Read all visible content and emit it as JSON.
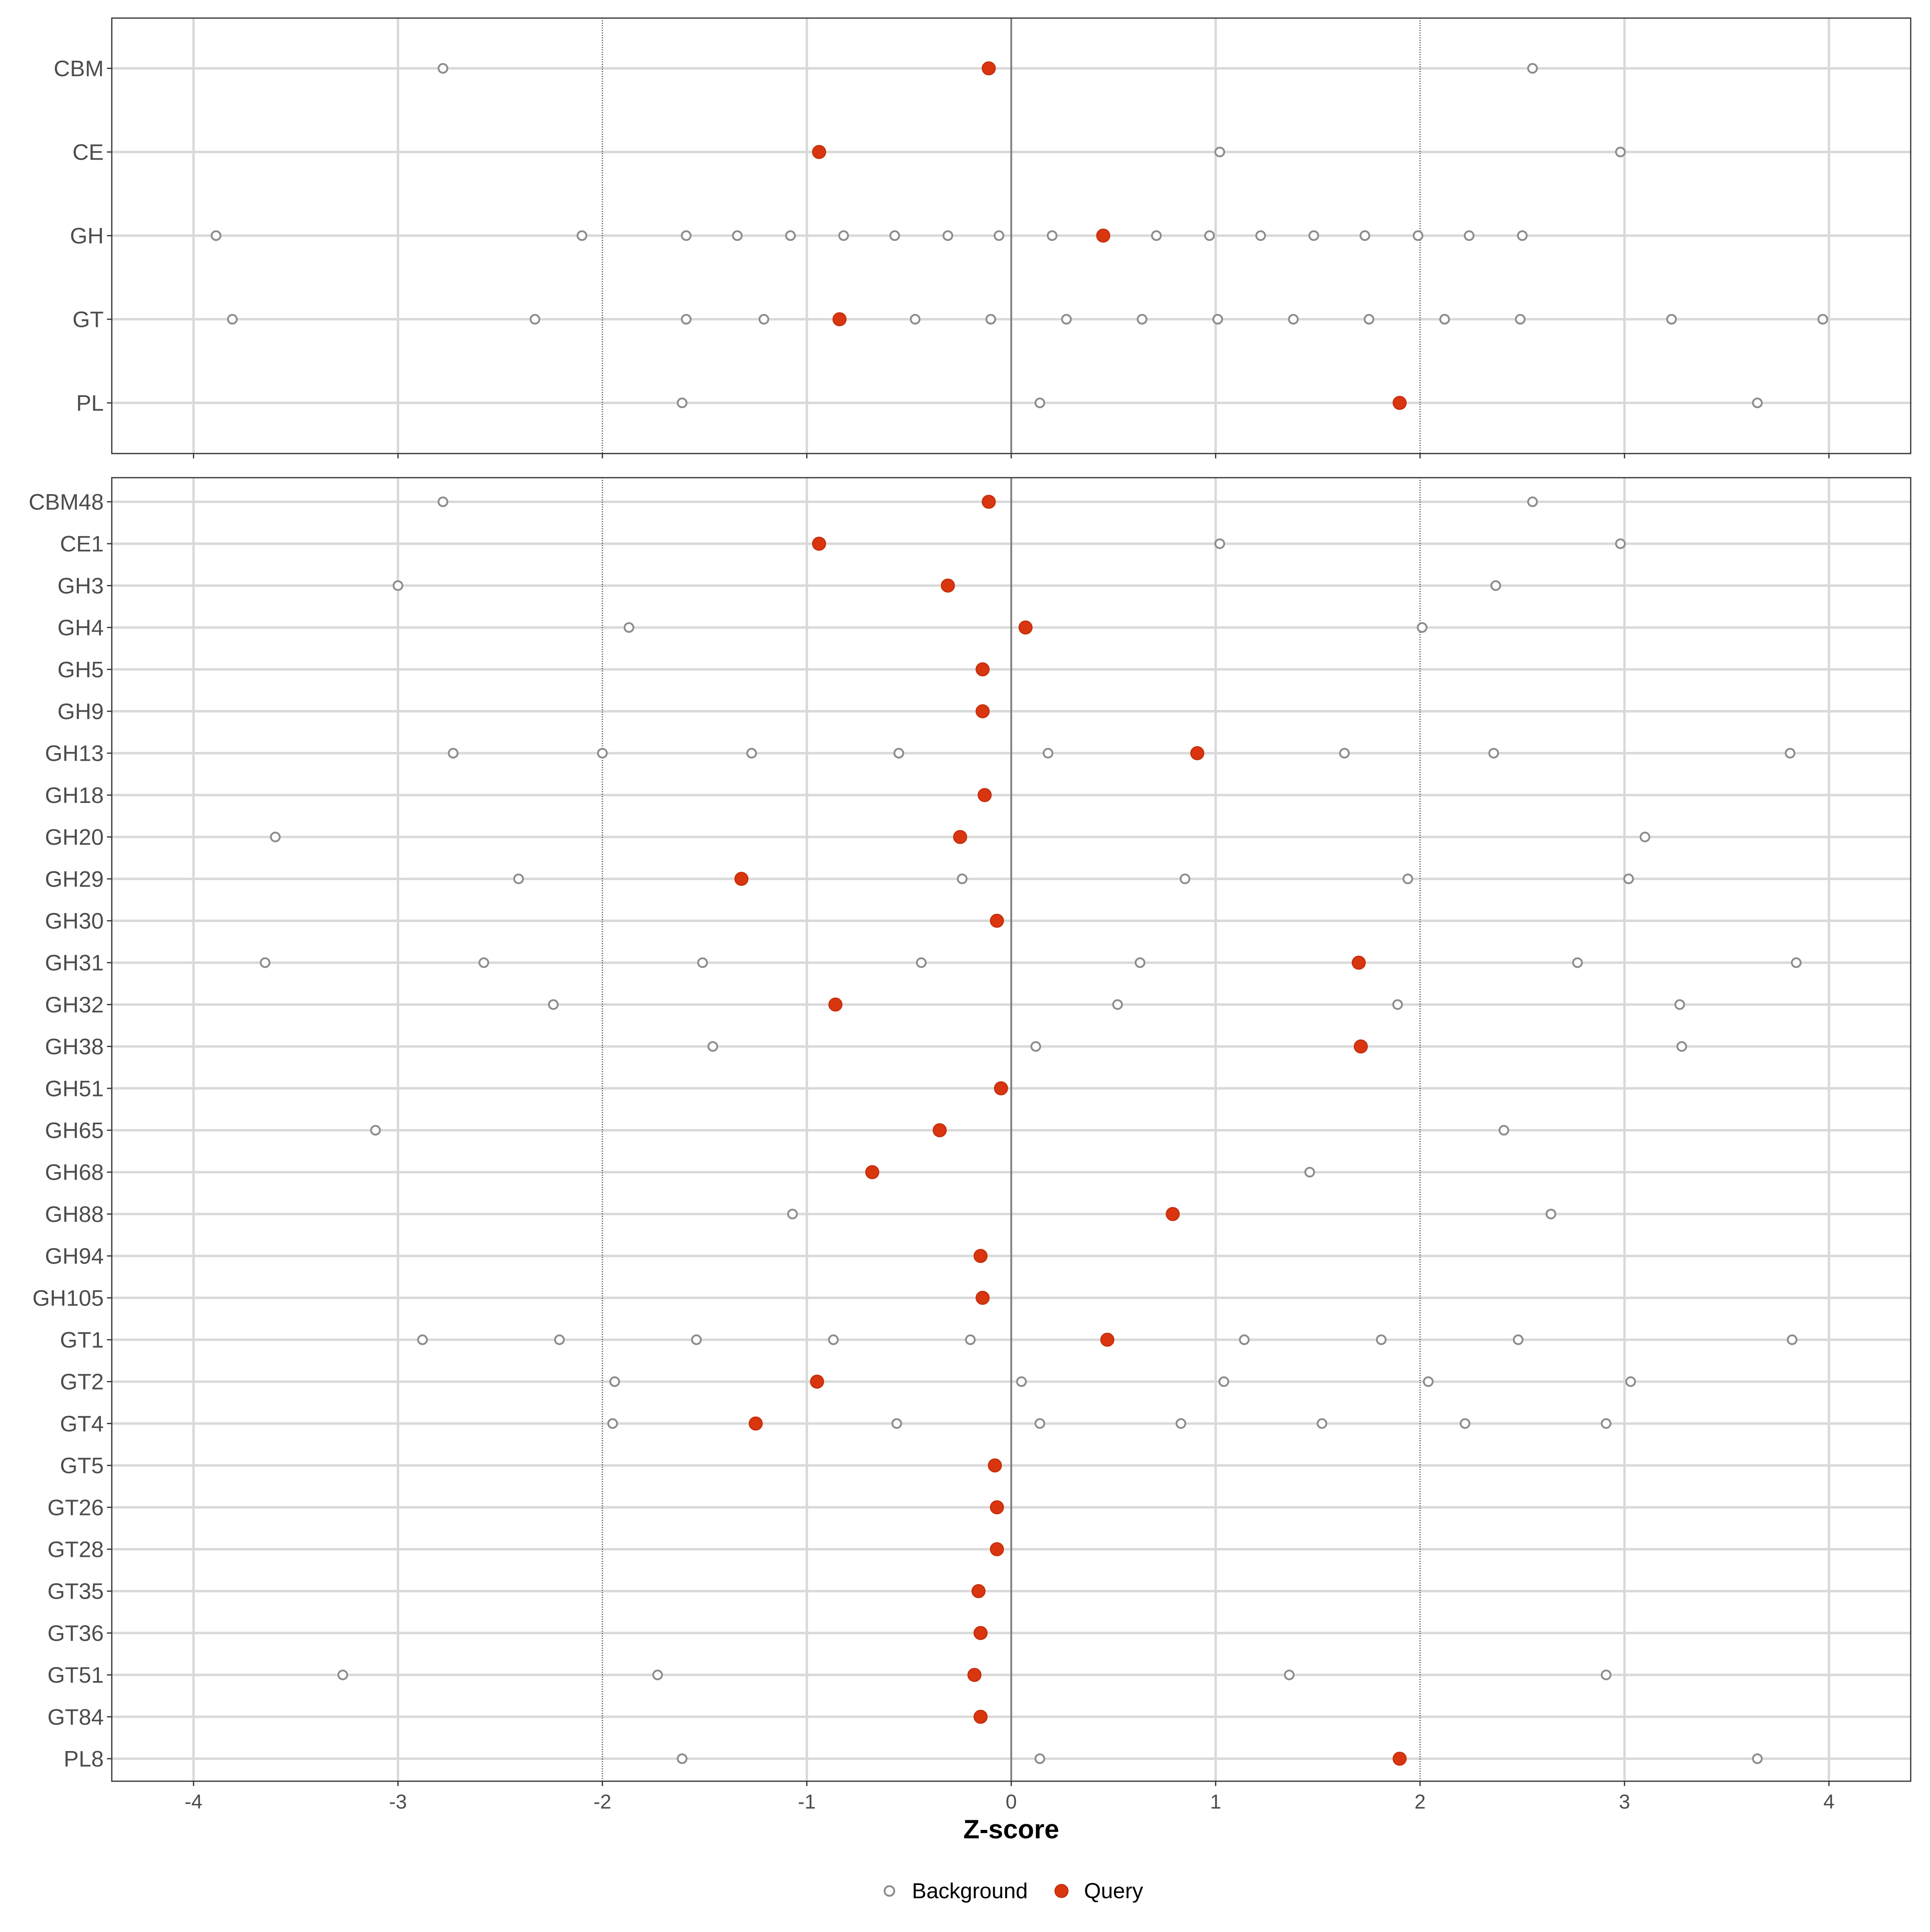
{
  "chart_data": [
    {
      "type": "scatter",
      "panel": "class",
      "xlim": [
        -4.4,
        4.4
      ],
      "x_ticks": [
        -4,
        -3,
        -2,
        -1,
        0,
        1,
        2,
        3,
        4
      ],
      "reference_lines": {
        "zero": 0,
        "thresholds": [
          -2,
          2
        ]
      },
      "grid": true,
      "categories": [
        "CBM",
        "CE",
        "GH",
        "GT",
        "PL"
      ],
      "background": [
        {
          "category": "CBM",
          "x": [
            -2.78,
            2.55
          ]
        },
        {
          "category": "CE",
          "x": [
            1.02,
            2.98
          ]
        },
        {
          "category": "GH",
          "x": [
            -3.89,
            -2.1,
            -1.59,
            -1.34,
            -1.08,
            -0.82,
            -0.57,
            -0.31,
            -0.06,
            0.2,
            0.71,
            0.97,
            1.22,
            1.48,
            1.73,
            1.99,
            2.24,
            2.5
          ]
        },
        {
          "category": "GT",
          "x": [
            -3.81,
            -2.33,
            -1.59,
            -1.21,
            -0.47,
            -0.1,
            0.27,
            0.64,
            1.01,
            1.38,
            1.75,
            2.12,
            2.49,
            3.23,
            3.97
          ]
        },
        {
          "category": "PL",
          "x": [
            -1.61,
            0.14,
            3.65
          ]
        }
      ],
      "query": [
        {
          "category": "CBM",
          "x": -0.11
        },
        {
          "category": "CE",
          "x": -0.94
        },
        {
          "category": "GH",
          "x": 0.45
        },
        {
          "category": "GT",
          "x": -0.84
        },
        {
          "category": "PL",
          "x": 1.9
        }
      ]
    },
    {
      "type": "scatter",
      "panel": "family",
      "xlabel": "Z-score",
      "xlim": [
        -4.4,
        4.4
      ],
      "x_ticks": [
        -4,
        -3,
        -2,
        -1,
        0,
        1,
        2,
        3,
        4
      ],
      "reference_lines": {
        "zero": 0,
        "thresholds": [
          -2,
          2
        ]
      },
      "grid": true,
      "categories": [
        "CBM48",
        "CE1",
        "GH3",
        "GH4",
        "GH5",
        "GH9",
        "GH13",
        "GH18",
        "GH20",
        "GH29",
        "GH30",
        "GH31",
        "GH32",
        "GH38",
        "GH51",
        "GH65",
        "GH68",
        "GH88",
        "GH94",
        "GH105",
        "GT1",
        "GT2",
        "GT4",
        "GT5",
        "GT26",
        "GT28",
        "GT35",
        "GT36",
        "GT51",
        "GT84",
        "PL8"
      ],
      "background": [
        {
          "category": "CBM48",
          "x": [
            -2.78,
            2.55
          ]
        },
        {
          "category": "CE1",
          "x": [
            1.02,
            2.98
          ]
        },
        {
          "category": "GH3",
          "x": [
            -3.0,
            2.37
          ]
        },
        {
          "category": "GH4",
          "x": [
            -1.87,
            2.01
          ]
        },
        {
          "category": "GH5",
          "x": []
        },
        {
          "category": "GH9",
          "x": []
        },
        {
          "category": "GH13",
          "x": [
            -2.73,
            -2.0,
            -1.27,
            -0.55,
            0.18,
            1.63,
            2.36,
            3.81
          ]
        },
        {
          "category": "GH18",
          "x": []
        },
        {
          "category": "GH20",
          "x": [
            -3.6,
            3.1
          ]
        },
        {
          "category": "GH29",
          "x": [
            -2.41,
            -0.24,
            0.85,
            1.94,
            3.02
          ]
        },
        {
          "category": "GH30",
          "x": []
        },
        {
          "category": "GH31",
          "x": [
            -3.65,
            -2.58,
            -1.51,
            -0.44,
            0.63,
            2.77,
            3.84
          ]
        },
        {
          "category": "GH32",
          "x": [
            -2.24,
            0.52,
            1.89,
            3.27
          ]
        },
        {
          "category": "GH38",
          "x": [
            -1.46,
            0.12,
            3.28
          ]
        },
        {
          "category": "GH51",
          "x": []
        },
        {
          "category": "GH65",
          "x": [
            -3.11,
            2.41
          ]
        },
        {
          "category": "GH68",
          "x": [
            1.46
          ]
        },
        {
          "category": "GH88",
          "x": [
            -1.07,
            2.64
          ]
        },
        {
          "category": "GH94",
          "x": []
        },
        {
          "category": "GH105",
          "x": []
        },
        {
          "category": "GT1",
          "x": [
            -2.88,
            -2.21,
            -1.54,
            -0.87,
            -0.2,
            1.14,
            1.81,
            2.48,
            3.82
          ]
        },
        {
          "category": "GT2",
          "x": [
            -1.94,
            0.05,
            1.04,
            2.04,
            3.03
          ]
        },
        {
          "category": "GT4",
          "x": [
            -1.95,
            -0.56,
            0.14,
            0.83,
            1.52,
            2.22,
            2.91
          ]
        },
        {
          "category": "GT5",
          "x": []
        },
        {
          "category": "GT26",
          "x": []
        },
        {
          "category": "GT28",
          "x": []
        },
        {
          "category": "GT35",
          "x": []
        },
        {
          "category": "GT36",
          "x": []
        },
        {
          "category": "GT51",
          "x": [
            -3.27,
            -1.73,
            1.36,
            2.91
          ]
        },
        {
          "category": "GT84",
          "x": []
        },
        {
          "category": "PL8",
          "x": [
            -1.61,
            0.14,
            3.65
          ]
        }
      ],
      "query": [
        {
          "category": "CBM48",
          "x": -0.11
        },
        {
          "category": "CE1",
          "x": -0.94
        },
        {
          "category": "GH3",
          "x": -0.31
        },
        {
          "category": "GH4",
          "x": 0.07
        },
        {
          "category": "GH5",
          "x": -0.14
        },
        {
          "category": "GH9",
          "x": -0.14
        },
        {
          "category": "GH13",
          "x": 0.91
        },
        {
          "category": "GH18",
          "x": -0.13
        },
        {
          "category": "GH20",
          "x": -0.25
        },
        {
          "category": "GH29",
          "x": -1.32
        },
        {
          "category": "GH30",
          "x": -0.07
        },
        {
          "category": "GH31",
          "x": 1.7
        },
        {
          "category": "GH32",
          "x": -0.86
        },
        {
          "category": "GH38",
          "x": 1.71
        },
        {
          "category": "GH51",
          "x": -0.05
        },
        {
          "category": "GH65",
          "x": -0.35
        },
        {
          "category": "GH68",
          "x": -0.68
        },
        {
          "category": "GH88",
          "x": 0.79
        },
        {
          "category": "GH94",
          "x": -0.15
        },
        {
          "category": "GH105",
          "x": -0.14
        },
        {
          "category": "GT1",
          "x": 0.47
        },
        {
          "category": "GT2",
          "x": -0.95
        },
        {
          "category": "GT4",
          "x": -1.25
        },
        {
          "category": "GT5",
          "x": -0.08
        },
        {
          "category": "GT26",
          "x": -0.07
        },
        {
          "category": "GT28",
          "x": -0.07
        },
        {
          "category": "GT35",
          "x": -0.16
        },
        {
          "category": "GT36",
          "x": -0.15
        },
        {
          "category": "GT51",
          "x": -0.18
        },
        {
          "category": "GT84",
          "x": -0.15
        },
        {
          "category": "PL8",
          "x": 1.9
        }
      ]
    }
  ],
  "legend": {
    "placement": "bottom",
    "items": [
      {
        "label": "Background",
        "marker": "open-circle",
        "color": "#8c8c8c"
      },
      {
        "label": "Query",
        "marker": "filled-circle",
        "color": "#d93610"
      }
    ]
  },
  "colors": {
    "query": "#d93610",
    "background": "#8c8c8c",
    "grid": "#d9d9d9",
    "frame": "#333333"
  }
}
